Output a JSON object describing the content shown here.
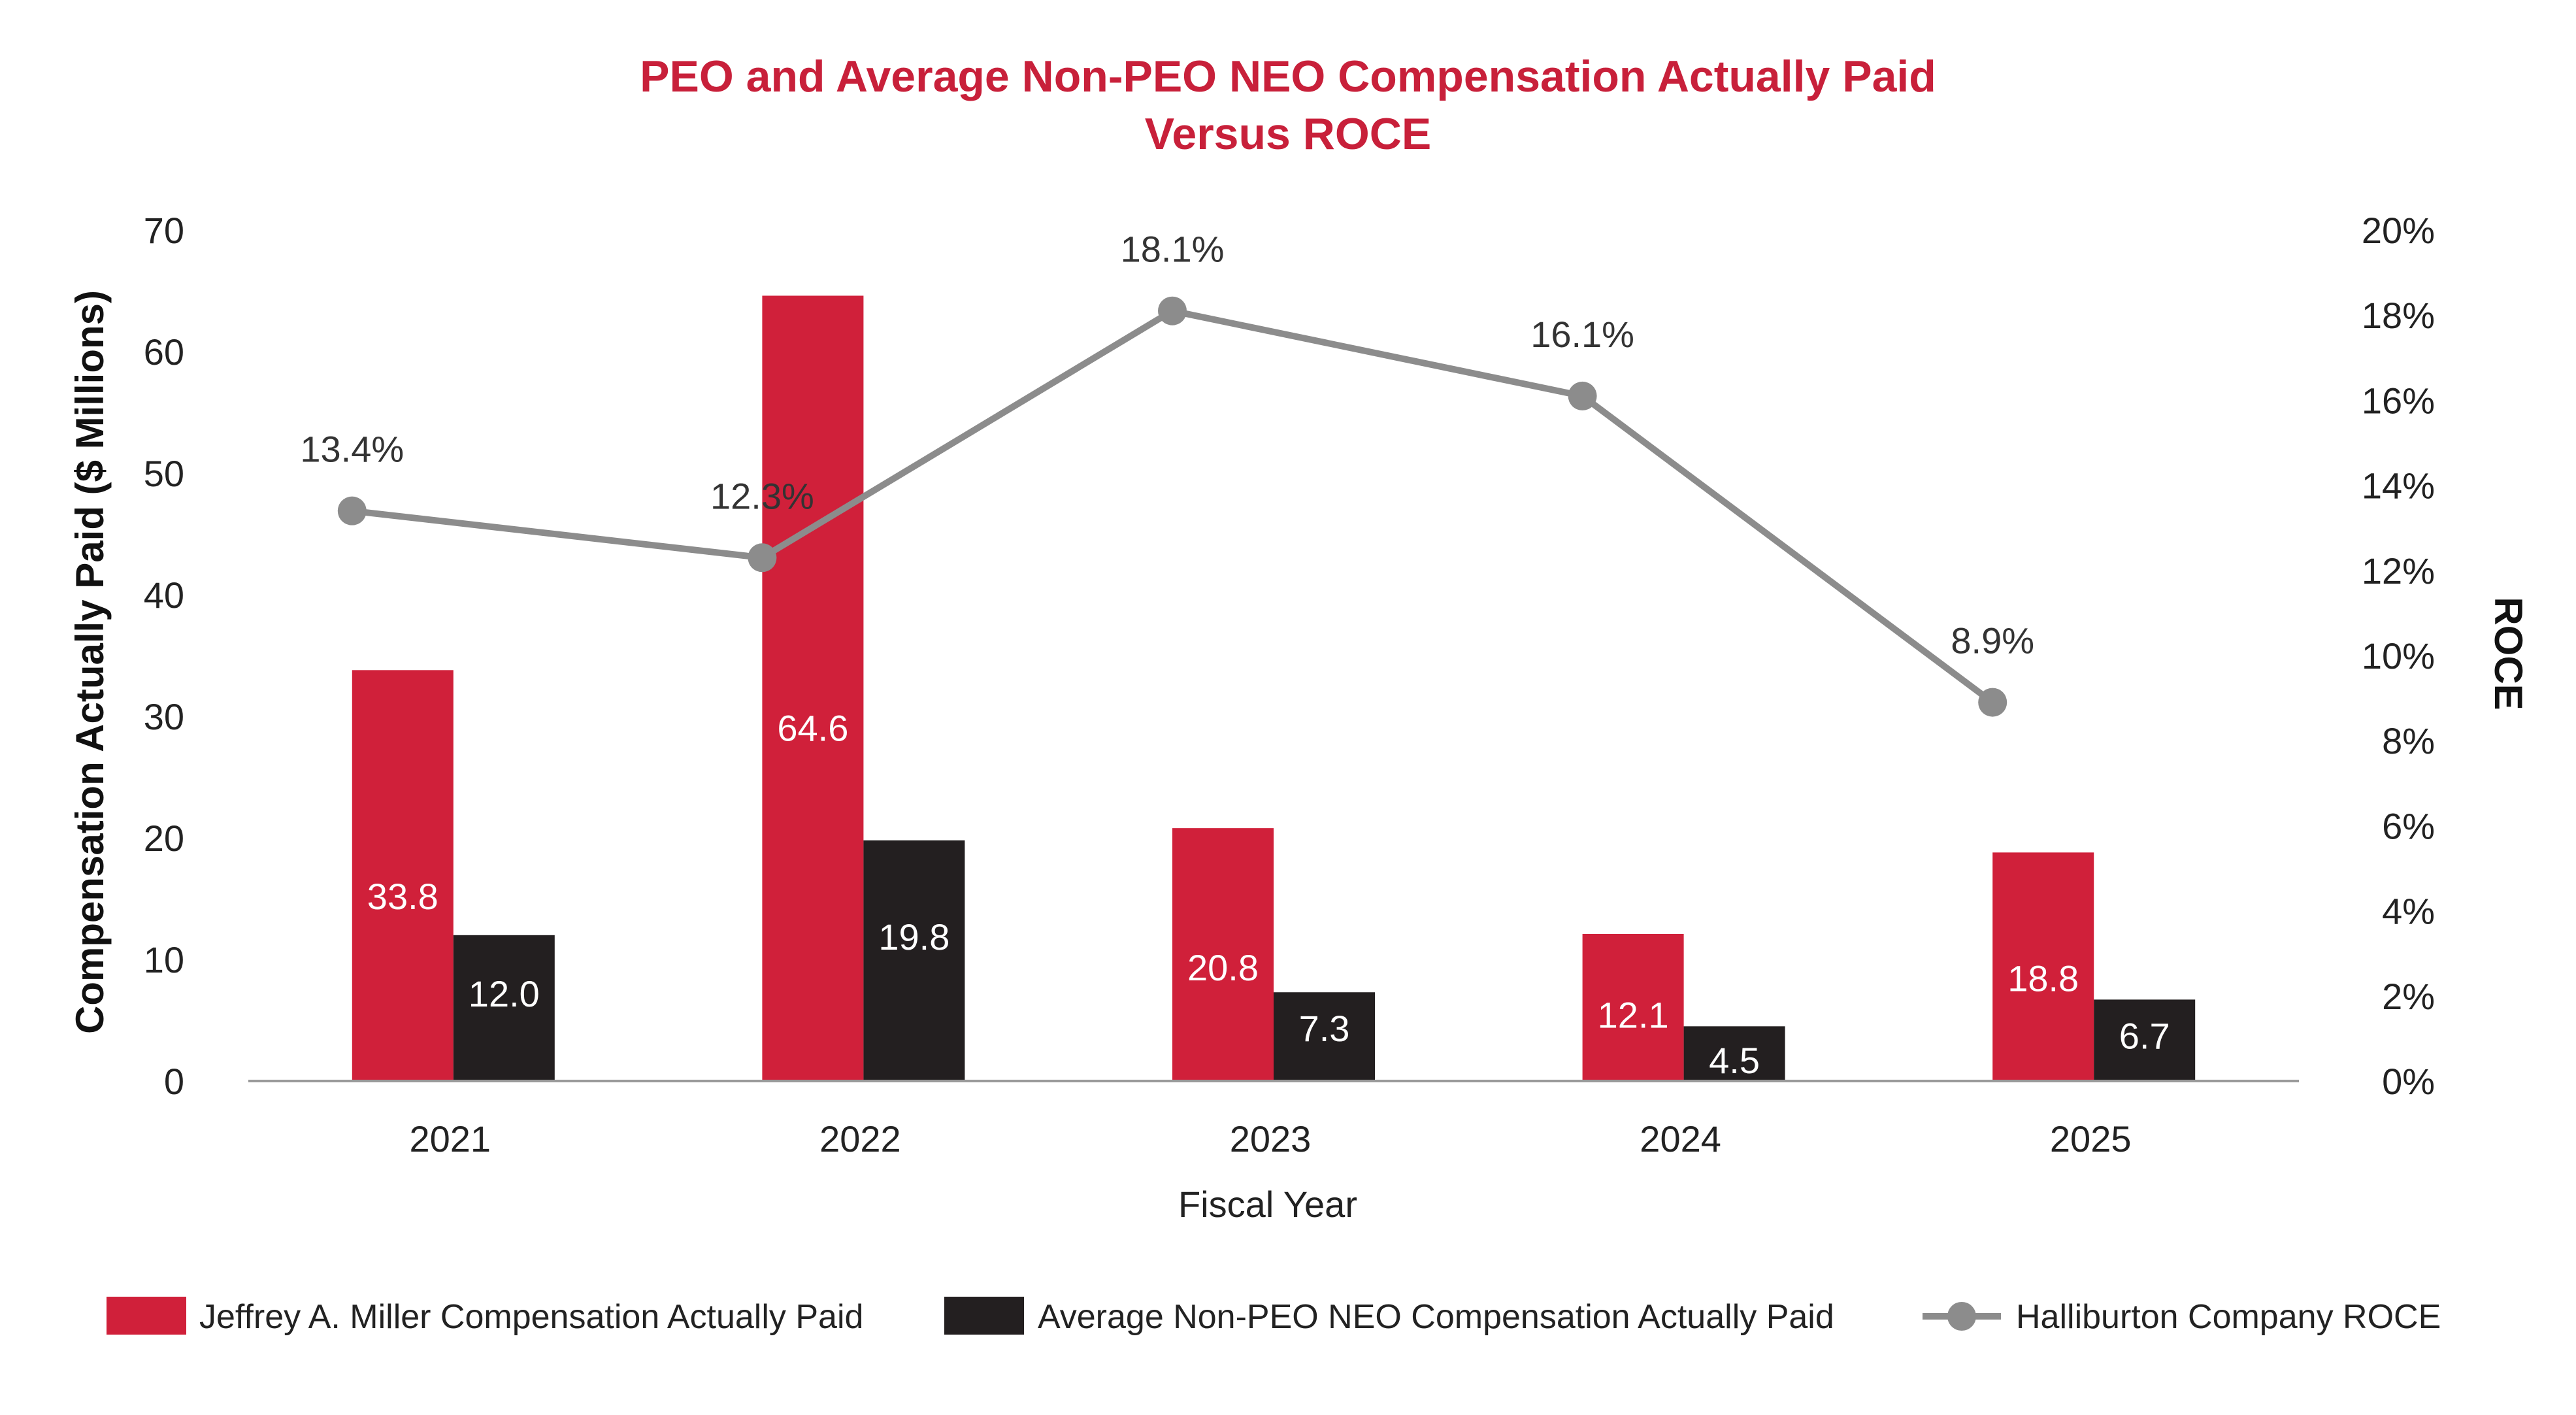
{
  "colors": {
    "title": "#c8203a",
    "series_red": "#d0203a",
    "series_black": "#231f20",
    "series_gray": "#8c8c8c",
    "axis": "#9a9a9a"
  },
  "chart_data": {
    "type": "bar",
    "title": "PEO and Average Non-PEO NEO Compensation Actually Paid",
    "subtitle": "Versus ROCE",
    "xlabel": "Fiscal Year",
    "ylabel": "Compensation Actually Paid ($ Millions)",
    "y2label": "ROCE",
    "categories": [
      "2021",
      "2022",
      "2023",
      "2024",
      "2025"
    ],
    "ylim": [
      0,
      70
    ],
    "yticks": [
      "0",
      "10",
      "20",
      "30",
      "40",
      "50",
      "60",
      "70"
    ],
    "y2lim": [
      0,
      20
    ],
    "y2ticks": [
      "0%",
      "2%",
      "4%",
      "6%",
      "8%",
      "10%",
      "12%",
      "14%",
      "16%",
      "18%",
      "20%"
    ],
    "grid": false,
    "legend_position": "bottom",
    "series": [
      {
        "name": "Jeffrey A. Miller Compensation Actually Paid",
        "kind": "bar",
        "axis": "left",
        "values": [
          33.8,
          64.6,
          20.8,
          12.1,
          18.8
        ],
        "labels": [
          "33.8",
          "64.6",
          "20.8",
          "12.1",
          "18.8"
        ]
      },
      {
        "name": "Average Non-PEO NEO Compensation Actually Paid",
        "kind": "bar",
        "axis": "left",
        "values": [
          12.0,
          19.8,
          7.3,
          4.5,
          6.7
        ],
        "labels": [
          "12.0",
          "19.8",
          "7.3",
          "4.5",
          "6.7"
        ]
      },
      {
        "name": "Halliburton Company ROCE",
        "kind": "line",
        "axis": "right",
        "values": [
          13.4,
          12.3,
          18.1,
          16.1,
          8.9
        ],
        "labels": [
          "13.4%",
          "12.3%",
          "18.1%",
          "16.1%",
          "8.9%"
        ]
      }
    ]
  }
}
